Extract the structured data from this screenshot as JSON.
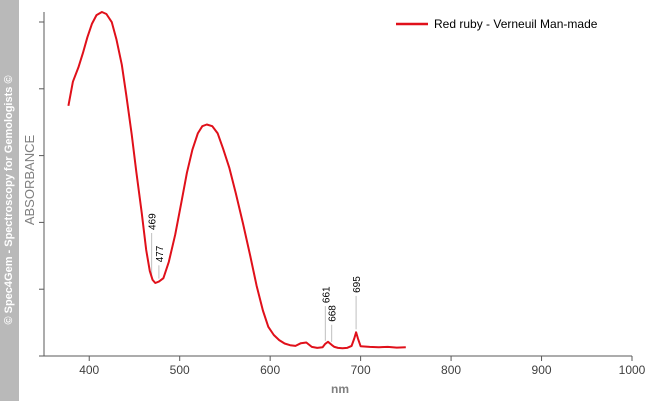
{
  "watermark": "© Spec4Gem - Spectroscopy for Gemologists ©",
  "colors": {
    "series": "#e0101a",
    "axis": "#595959",
    "strip": "#b9b9b9",
    "peak_line": "#bfbfbf"
  },
  "chart_data": {
    "type": "line",
    "title": "",
    "xlabel": "nm",
    "ylabel": "ABSORBANCE",
    "xlim": [
      350,
      1000
    ],
    "ylim": [
      0,
      1
    ],
    "xticks": [
      400,
      500,
      600,
      700,
      800,
      900,
      1000
    ],
    "yticks_count": 6,
    "y_tick_labels_shown": false,
    "grid": false,
    "legend": "top-right",
    "series": [
      {
        "name": "Red ruby - Verneuil Man-made",
        "x": [
          377,
          382,
          388,
          393,
          398,
          403,
          408,
          414,
          419,
          425,
          430,
          436,
          441,
          447,
          452,
          458,
          463,
          467,
          470,
          473,
          477,
          482,
          488,
          495,
          502,
          508,
          514,
          520,
          525,
          530,
          536,
          542,
          548,
          555,
          562,
          570,
          578,
          585,
          592,
          598,
          604,
          610,
          616,
          622,
          628,
          634,
          640,
          646,
          652,
          658,
          661,
          664,
          668,
          671,
          675,
          680,
          685,
          690,
          693,
          695,
          697,
          700,
          710,
          720,
          730,
          740,
          750
        ],
        "y": [
          0.724,
          0.795,
          0.837,
          0.879,
          0.926,
          0.965,
          0.991,
          1.0,
          0.994,
          0.97,
          0.92,
          0.845,
          0.755,
          0.64,
          0.53,
          0.41,
          0.3,
          0.238,
          0.212,
          0.203,
          0.207,
          0.217,
          0.265,
          0.345,
          0.442,
          0.527,
          0.595,
          0.643,
          0.664,
          0.669,
          0.664,
          0.643,
          0.598,
          0.541,
          0.467,
          0.378,
          0.282,
          0.195,
          0.122,
          0.074,
          0.05,
          0.035,
          0.025,
          0.02,
          0.018,
          0.026,
          0.028,
          0.015,
          0.012,
          0.014,
          0.024,
          0.03,
          0.021,
          0.015,
          0.012,
          0.011,
          0.012,
          0.018,
          0.04,
          0.058,
          0.04,
          0.017,
          0.015,
          0.014,
          0.015,
          0.013,
          0.014
        ]
      }
    ],
    "peak_labels": [
      "469",
      "477",
      "661",
      "668",
      "695"
    ],
    "peaks": [
      {
        "x": 469,
        "y": 0.212,
        "line_top_y": 0.35,
        "label": "469"
      },
      {
        "x": 477,
        "y": 0.207,
        "line_top_y": 0.255,
        "label": "477"
      },
      {
        "x": 661,
        "y": 0.024,
        "line_top_y": 0.135,
        "label": "661"
      },
      {
        "x": 668,
        "y": 0.021,
        "line_top_y": 0.08,
        "label": "668"
      },
      {
        "x": 695,
        "y": 0.058,
        "line_top_y": 0.165,
        "label": "695"
      }
    ]
  }
}
